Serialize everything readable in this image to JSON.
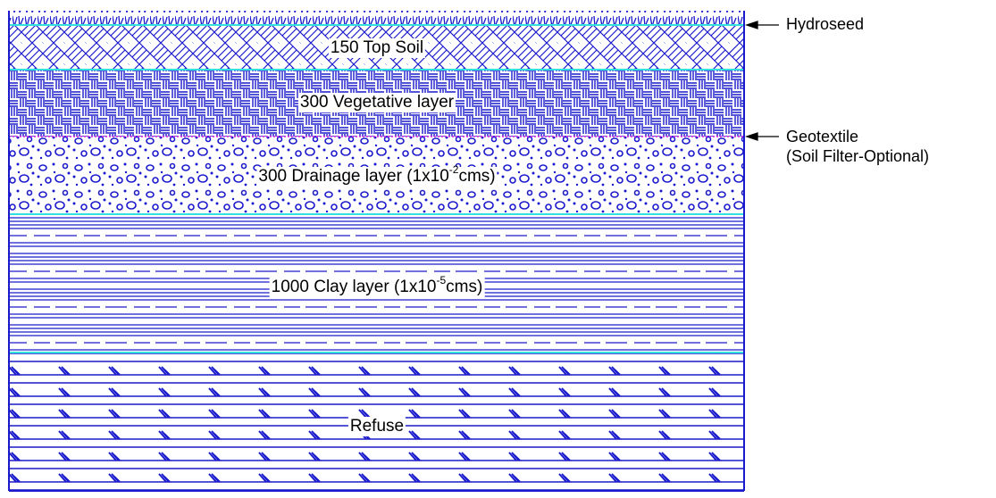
{
  "layers": [
    {
      "label": {
        "text": "150 Top Soil"
      }
    },
    {
      "label": {
        "text": "300 Vegetative layer"
      }
    },
    {
      "label": {
        "text": "300 Drainage layer (1x10",
        "sup": "-2",
        "after": "cms)"
      }
    },
    {
      "label": {
        "text": "1000 Clay layer (1x10",
        "sup": "-5",
        "after": "cms)"
      }
    },
    {
      "label": {
        "text": "Refuse"
      }
    }
  ],
  "annotations": [
    {
      "lines": [
        "Hydroseed"
      ]
    },
    {
      "lines": [
        "Geotextile",
        "(Soil Filter-Optional)"
      ]
    }
  ]
}
